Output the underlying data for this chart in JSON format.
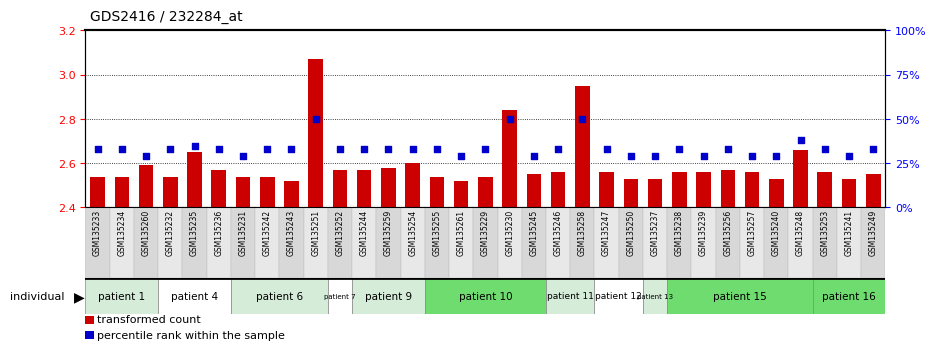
{
  "title": "GDS2416 / 232284_at",
  "samples": [
    "GSM135233",
    "GSM135234",
    "GSM135260",
    "GSM135232",
    "GSM135235",
    "GSM135236",
    "GSM135231",
    "GSM135242",
    "GSM135243",
    "GSM135251",
    "GSM135252",
    "GSM135244",
    "GSM135259",
    "GSM135254",
    "GSM135255",
    "GSM135261",
    "GSM135229",
    "GSM135230",
    "GSM135245",
    "GSM135246",
    "GSM135258",
    "GSM135247",
    "GSM135250",
    "GSM135237",
    "GSM135238",
    "GSM135239",
    "GSM135256",
    "GSM135257",
    "GSM135240",
    "GSM135248",
    "GSM135253",
    "GSM135241",
    "GSM135249"
  ],
  "bar_values": [
    2.54,
    2.54,
    2.59,
    2.54,
    2.65,
    2.57,
    2.54,
    2.54,
    2.52,
    3.07,
    2.57,
    2.57,
    2.58,
    2.6,
    2.54,
    2.52,
    2.54,
    2.84,
    2.55,
    2.56,
    2.95,
    2.56,
    2.53,
    2.53,
    2.56,
    2.56,
    2.57,
    2.56,
    2.53,
    2.66,
    2.56,
    2.53,
    2.55
  ],
  "dot_values": [
    33,
    33,
    29,
    33,
    35,
    33,
    29,
    33,
    33,
    50,
    33,
    33,
    33,
    33,
    33,
    29,
    33,
    50,
    29,
    33,
    50,
    33,
    29,
    29,
    33,
    29,
    33,
    29,
    29,
    38,
    33,
    29,
    33
  ],
  "patients": [
    {
      "label": "patient 1",
      "start": 0,
      "end": 2,
      "color": "#d5ecd9"
    },
    {
      "label": "patient 4",
      "start": 3,
      "end": 5,
      "color": "#ffffff"
    },
    {
      "label": "patient 6",
      "start": 6,
      "end": 9,
      "color": "#d5ecd9"
    },
    {
      "label": "patient 7",
      "start": 10,
      "end": 10,
      "color": "#ffffff"
    },
    {
      "label": "patient 9",
      "start": 11,
      "end": 13,
      "color": "#d5ecd9"
    },
    {
      "label": "patient 10",
      "start": 14,
      "end": 18,
      "color": "#6fdc6f"
    },
    {
      "label": "patient 11",
      "start": 19,
      "end": 20,
      "color": "#d5ecd9"
    },
    {
      "label": "patient 12",
      "start": 21,
      "end": 22,
      "color": "#ffffff"
    },
    {
      "label": "patient 13",
      "start": 23,
      "end": 23,
      "color": "#d5ecd9"
    },
    {
      "label": "patient 15",
      "start": 24,
      "end": 29,
      "color": "#6fdc6f"
    },
    {
      "label": "patient 16",
      "start": 30,
      "end": 32,
      "color": "#6fdc6f"
    }
  ],
  "ylim_left": [
    2.4,
    3.2
  ],
  "ylim_right": [
    0,
    100
  ],
  "yticks_left": [
    2.4,
    2.6,
    2.8,
    3.0,
    3.2
  ],
  "yticks_right": [
    0,
    25,
    50,
    75,
    100
  ],
  "ytick_labels_right": [
    "0%",
    "25%",
    "50%",
    "75%",
    "100%"
  ],
  "bar_color": "#cc0000",
  "dot_color": "#0000cc",
  "bar_bottom": 2.4,
  "grid_values": [
    2.6,
    2.8,
    3.0
  ],
  "legend_items": [
    {
      "color": "#cc0000",
      "label": "transformed count"
    },
    {
      "color": "#0000cc",
      "label": "percentile rank within the sample"
    }
  ]
}
